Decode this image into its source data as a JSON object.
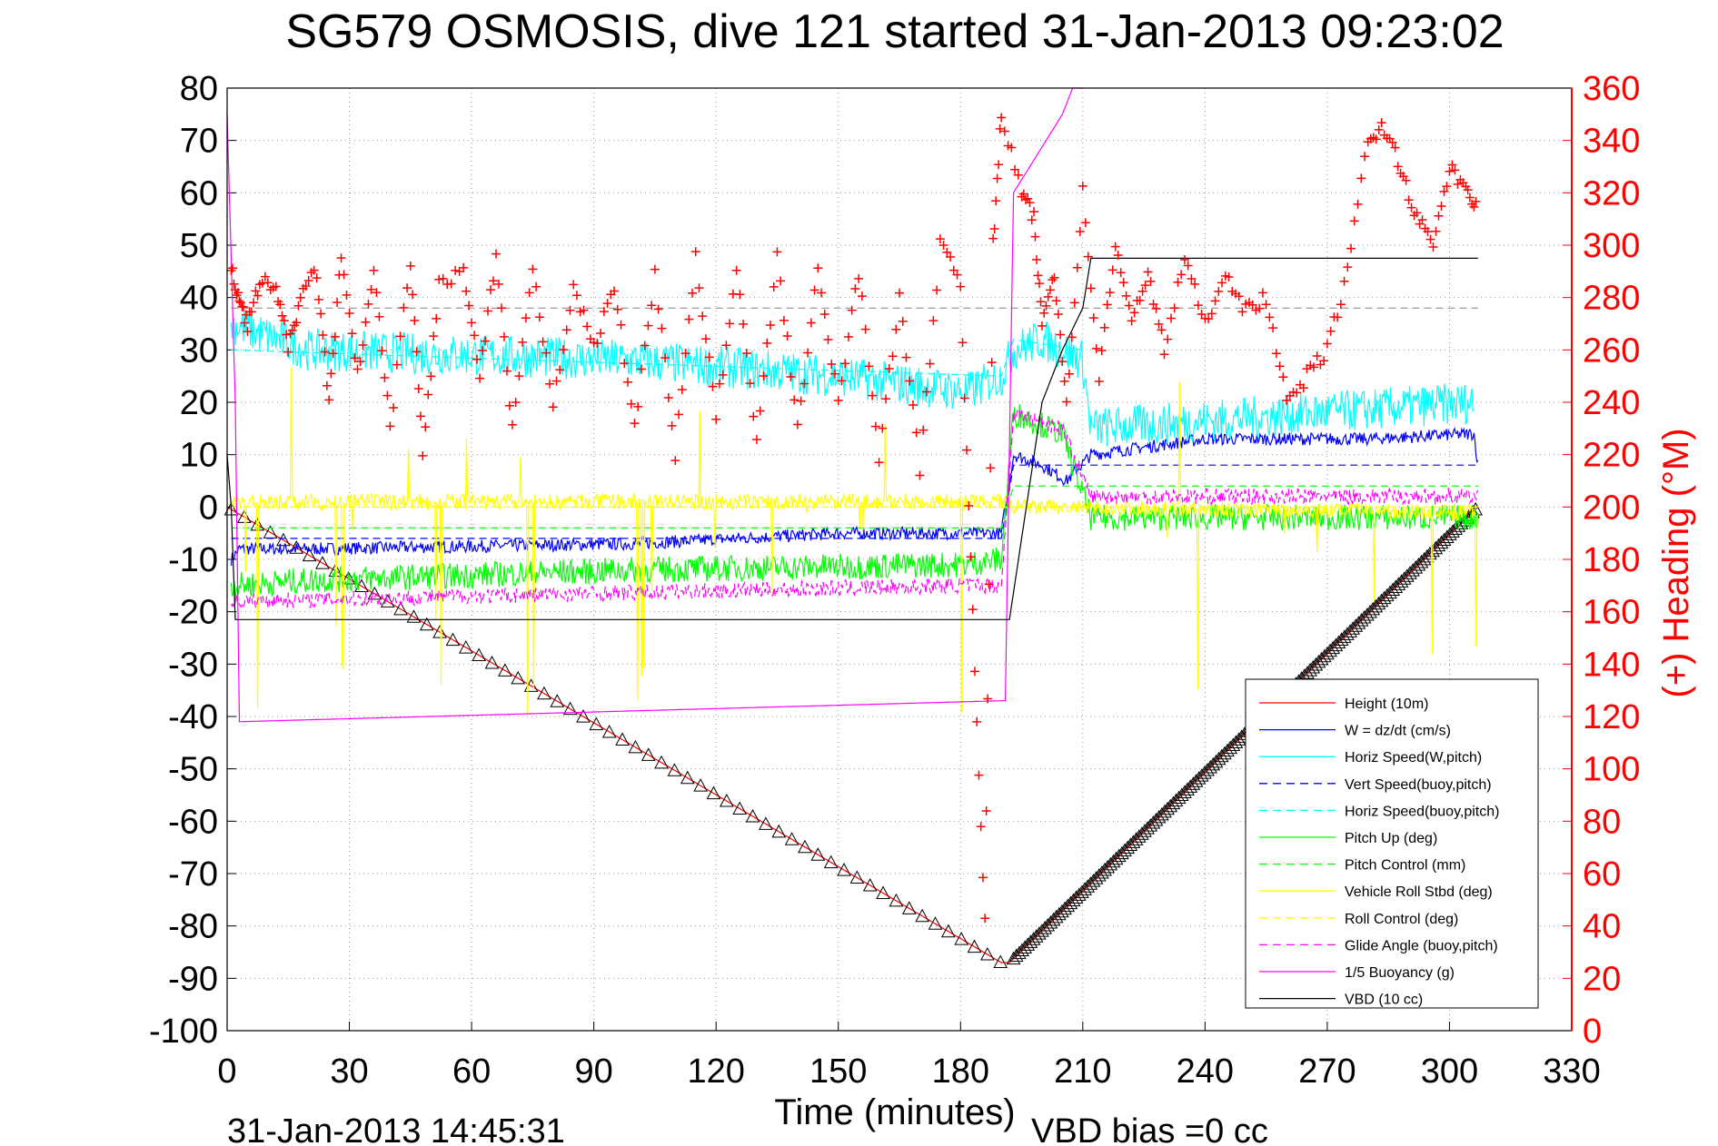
{
  "chart_data": {
    "type": "line",
    "title": "SG579 OSMOSIS, dive 121 started 31-Jan-2013 09:23:02",
    "xlabel": "Time (minutes)",
    "ylabel_right": "(+) Heading (°M)",
    "footer_timestamp": "31-Jan-2013 14:45:31",
    "footer_note": "VBD bias =0 cc",
    "xlim": [
      0,
      330
    ],
    "ylim_left": [
      -100,
      80
    ],
    "ylim_right": [
      0,
      360
    ],
    "x_ticks": [
      "0",
      "30",
      "60",
      "90",
      "120",
      "150",
      "180",
      "210",
      "240",
      "270",
      "300",
      "330"
    ],
    "y_ticks_left": [
      "80",
      "70",
      "60",
      "50",
      "40",
      "30",
      "20",
      "10",
      "0",
      "-10",
      "-20",
      "-30",
      "-40",
      "-50",
      "-60",
      "-70",
      "-80",
      "-90",
      "-100"
    ],
    "y_ticks_right": [
      "360",
      "340",
      "320",
      "300",
      "280",
      "260",
      "240",
      "220",
      "200",
      "180",
      "160",
      "140",
      "120",
      "100",
      "80",
      "60",
      "40",
      "20",
      "0"
    ],
    "grid": true,
    "legend_position": "bottom-right",
    "reference_line": {
      "y": 38,
      "color": "#808080"
    },
    "series": [
      {
        "name": "Height (10m)",
        "color": "#ff0000",
        "style": "solid",
        "x": [
          0,
          190,
          192,
          307
        ],
        "y": [
          0,
          -87,
          -87,
          0
        ]
      },
      {
        "name": "W = dz/dt (cm/s)",
        "color": "#0000ff",
        "style": "solid",
        "x": [
          1,
          3,
          20,
          100,
          150,
          185,
          190,
          193,
          200,
          206,
          212,
          240,
          280,
          306,
          307
        ],
        "y": [
          -10,
          -8,
          -8,
          -7,
          -5,
          -5,
          -5,
          10,
          8,
          5,
          10,
          13,
          13,
          14,
          8
        ],
        "noise": 1.2
      },
      {
        "name": "Horiz Speed(W,pitch)",
        "color": "#00ffff",
        "style": "solid",
        "x": [
          1,
          20,
          100,
          150,
          182,
          190,
          193,
          200,
          210,
          212,
          306
        ],
        "y": [
          35,
          30,
          28,
          25,
          22,
          25,
          30,
          32,
          28,
          15,
          20
        ],
        "noise": 4
      },
      {
        "name": "Vert Speed(buoy,pitch)",
        "color": "#0000ff",
        "style": "dashed",
        "x": [
          1,
          190,
          193,
          307
        ],
        "y": [
          -6,
          -6,
          8,
          8
        ]
      },
      {
        "name": "Horiz Speed(buoy,pitch)",
        "color": "#00ffff",
        "style": "dashed",
        "x": [
          1,
          190,
          193,
          210
        ],
        "y": [
          30,
          25,
          32,
          30
        ]
      },
      {
        "name": "Pitch Up (deg)",
        "color": "#00ff00",
        "style": "solid",
        "x": [
          1,
          20,
          100,
          180,
          190,
          193,
          205,
          212,
          307
        ],
        "y": [
          -15,
          -14,
          -12,
          -11,
          -10,
          18,
          14,
          -2,
          -2
        ],
        "noise": 2.5
      },
      {
        "name": "Pitch Control (mm)",
        "color": "#00ff00",
        "style": "dashed",
        "x": [
          1,
          190,
          193,
          307
        ],
        "y": [
          -4,
          -4,
          4,
          4
        ]
      },
      {
        "name": "Vehicle Roll Stbd (deg)",
        "color": "#ffff00",
        "style": "solid",
        "x": [
          1,
          190,
          193,
          307
        ],
        "y": [
          1,
          1,
          0,
          -1
        ],
        "noise": 1.5
      },
      {
        "name": "Roll Control (deg)",
        "color": "#ffff00",
        "style": "dashed",
        "x": [
          1,
          307
        ],
        "y": [
          0,
          0
        ]
      },
      {
        "name": "Glide Angle (buoy,pitch)",
        "color": "#ff00ff",
        "style": "dashed",
        "x": [
          1,
          180,
          190,
          193,
          205,
          212,
          307
        ],
        "y": [
          -18,
          -15,
          -15,
          18,
          15,
          2,
          2
        ],
        "noise": 1.5
      },
      {
        "name": "1/5 Buoyancy (g)",
        "color": "#ff00ff",
        "style": "solid",
        "x": [
          0,
          2,
          3,
          190,
          191,
          193,
          205,
          210
        ],
        "y": [
          75,
          20,
          -41,
          -37,
          -37,
          60,
          75,
          85
        ]
      },
      {
        "name": "VBD (10 cc)",
        "color": "#000000",
        "style": "solid",
        "x": [
          0,
          1,
          2,
          190,
          192,
          200,
          205,
          210,
          212,
          307
        ],
        "y": [
          10,
          0,
          -21.5,
          -21.5,
          -21.5,
          20,
          30,
          38,
          47.5,
          47.5
        ]
      }
    ],
    "heading_marks": {
      "name": "Heading",
      "color": "#ff0000",
      "x": [
        1,
        3,
        5,
        8,
        12,
        15,
        18,
        22,
        25,
        28,
        32,
        36,
        40,
        45,
        48,
        52,
        58,
        62,
        66,
        70,
        75,
        80,
        85,
        90,
        95,
        100,
        105,
        110,
        115,
        120,
        125,
        130,
        135,
        140,
        145,
        150,
        155,
        160,
        165,
        170,
        175,
        180,
        183,
        186,
        188,
        190,
        195,
        198,
        200,
        203,
        206,
        210,
        214,
        218,
        222,
        226,
        230,
        235,
        240,
        245,
        250,
        255,
        260,
        265,
        270,
        275,
        280,
        284,
        288,
        292,
        296,
        300,
        304,
        307
      ],
      "y": [
        290,
        280,
        270,
        285,
        285,
        260,
        280,
        290,
        240,
        295,
        250,
        290,
        230,
        295,
        220,
        285,
        290,
        250,
        295,
        230,
        290,
        240,
        285,
        260,
        285,
        230,
        290,
        220,
        295,
        235,
        290,
        225,
        295,
        230,
        290,
        240,
        290,
        220,
        280,
        215,
        300,
        285,
        160,
        40,
        300,
        350,
        320,
        310,
        270,
        290,
        240,
        320,
        250,
        300,
        270,
        290,
        260,
        295,
        270,
        290,
        275,
        280,
        240,
        250,
        260,
        290,
        340,
        345,
        330,
        310,
        300,
        330,
        320,
        315
      ]
    }
  }
}
